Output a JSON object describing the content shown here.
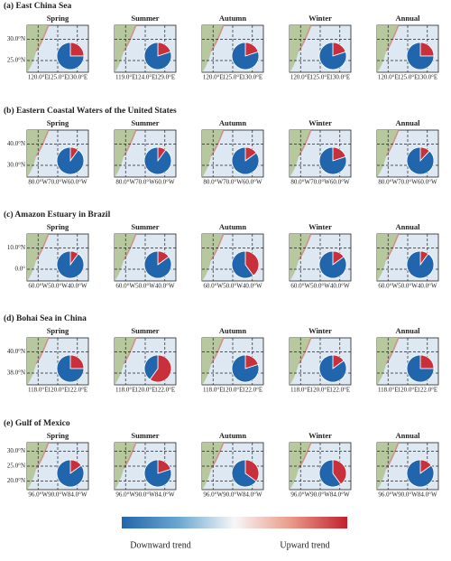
{
  "rows": [
    {
      "title": "(a) East China Sea",
      "yticks": [
        "30.0°N",
        "25.0°N"
      ],
      "panels": [
        {
          "season": "Spring",
          "xticks": [
            "120.0°E",
            "125.0°E",
            "130.0°E"
          ],
          "upward": 25,
          "downward": 75
        },
        {
          "season": "Summer",
          "xticks": [
            "119.0°E",
            "124.0°E",
            "129.0°E"
          ],
          "upward": 20,
          "downward": 80
        },
        {
          "season": "Autumn",
          "xticks": [
            "120.0°E",
            "125.0°E",
            "130.0°E"
          ],
          "upward": 20,
          "downward": 80
        },
        {
          "season": "Winter",
          "xticks": [
            "120.0°E",
            "125.0°E",
            "130.0°E"
          ],
          "upward": 20,
          "downward": 80
        },
        {
          "season": "Annual",
          "xticks": [
            "120.0°E",
            "125.0°E",
            "130.0°E"
          ],
          "upward": 25,
          "downward": 75
        }
      ]
    },
    {
      "title": "(b) Eastern Coastal Waters of the United States",
      "yticks": [
        "40.0°N",
        "30.0°N"
      ],
      "panels": [
        {
          "season": "Spring",
          "xticks": [
            "80.0°W",
            "70.0°W",
            "60.0°W"
          ],
          "upward": 10,
          "downward": 90
        },
        {
          "season": "Summer",
          "xticks": [
            "80.0°W",
            "70.0°W",
            "60.0°W"
          ],
          "upward": 10,
          "downward": 90
        },
        {
          "season": "Autumn",
          "xticks": [
            "80.0°W",
            "70.0°W",
            "60.0°W"
          ],
          "upward": 15,
          "downward": 85
        },
        {
          "season": "Winter",
          "xticks": [
            "80.0°W",
            "70.0°W",
            "60.0°W"
          ],
          "upward": 20,
          "downward": 80
        },
        {
          "season": "Annual",
          "xticks": [
            "80.0°W",
            "70.0°W",
            "60.0°W"
          ],
          "upward": 12,
          "downward": 88
        }
      ]
    },
    {
      "title": "(c) Amazon Estuary in Brazil",
      "yticks": [
        "10.0°N",
        "0.0°"
      ],
      "panels": [
        {
          "season": "Spring",
          "xticks": [
            "60.0°W",
            "50.0°W",
            "40.0°W"
          ],
          "upward": 10,
          "downward": 90
        },
        {
          "season": "Summer",
          "xticks": [
            "60.0°W",
            "50.0°W",
            "40.0°W"
          ],
          "upward": 15,
          "downward": 85
        },
        {
          "season": "Autumn",
          "xticks": [
            "60.0°W",
            "50.0°W",
            "40.0°W"
          ],
          "upward": 40,
          "downward": 60
        },
        {
          "season": "Winter",
          "xticks": [
            "60.0°W",
            "50.0°W",
            "40.0°W"
          ],
          "upward": 15,
          "downward": 85
        },
        {
          "season": "Annual",
          "xticks": [
            "60.0°W",
            "50.0°W",
            "40.0°W"
          ],
          "upward": 10,
          "downward": 90
        }
      ]
    },
    {
      "title": "(d) Bohai Sea in China",
      "yticks": [
        "40.0°N",
        "38.0°N"
      ],
      "panels": [
        {
          "season": "Spring",
          "xticks": [
            "118.0°E",
            "120.0°E",
            "122.0°E"
          ],
          "upward": 25,
          "downward": 75
        },
        {
          "season": "Summer",
          "xticks": [
            "118.0°E",
            "120.0°E",
            "122.0°E"
          ],
          "upward": 60,
          "downward": 40
        },
        {
          "season": "Autumn",
          "xticks": [
            "118.0°E",
            "120.0°E",
            "122.0°E"
          ],
          "upward": 20,
          "downward": 80
        },
        {
          "season": "Winter",
          "xticks": [
            "118.0°E",
            "120.0°E",
            "122.0°E"
          ],
          "upward": 15,
          "downward": 85
        },
        {
          "season": "Annual",
          "xticks": [
            "118.0°E",
            "120.0°E",
            "122.0°E"
          ],
          "upward": 25,
          "downward": 75
        }
      ]
    },
    {
      "title": "(e) Gulf of Mexico",
      "yticks": [
        "30.0°N",
        "25.0°N",
        "20.0°N"
      ],
      "panels": [
        {
          "season": "Spring",
          "xticks": [
            "96.0°W",
            "90.0°W",
            "84.0°W"
          ],
          "upward": 15,
          "downward": 85
        },
        {
          "season": "Summer",
          "xticks": [
            "96.0°W",
            "90.0°W",
            "84.0°W"
          ],
          "upward": 20,
          "downward": 80
        },
        {
          "season": "Autumn",
          "xticks": [
            "96.0°W",
            "90.0°W",
            "84.0°W"
          ],
          "upward": 35,
          "downward": 65
        },
        {
          "season": "Winter",
          "xticks": [
            "96.0°W",
            "90.0°W",
            "84.0°W"
          ],
          "upward": 40,
          "downward": 60
        },
        {
          "season": "Annual",
          "xticks": [
            "96.0°W",
            "90.0°W",
            "84.0°W"
          ],
          "upward": 15,
          "downward": 85
        }
      ]
    }
  ],
  "colorbar": {
    "low_label": "Downward trend",
    "high_label": "Upward trend"
  }
}
